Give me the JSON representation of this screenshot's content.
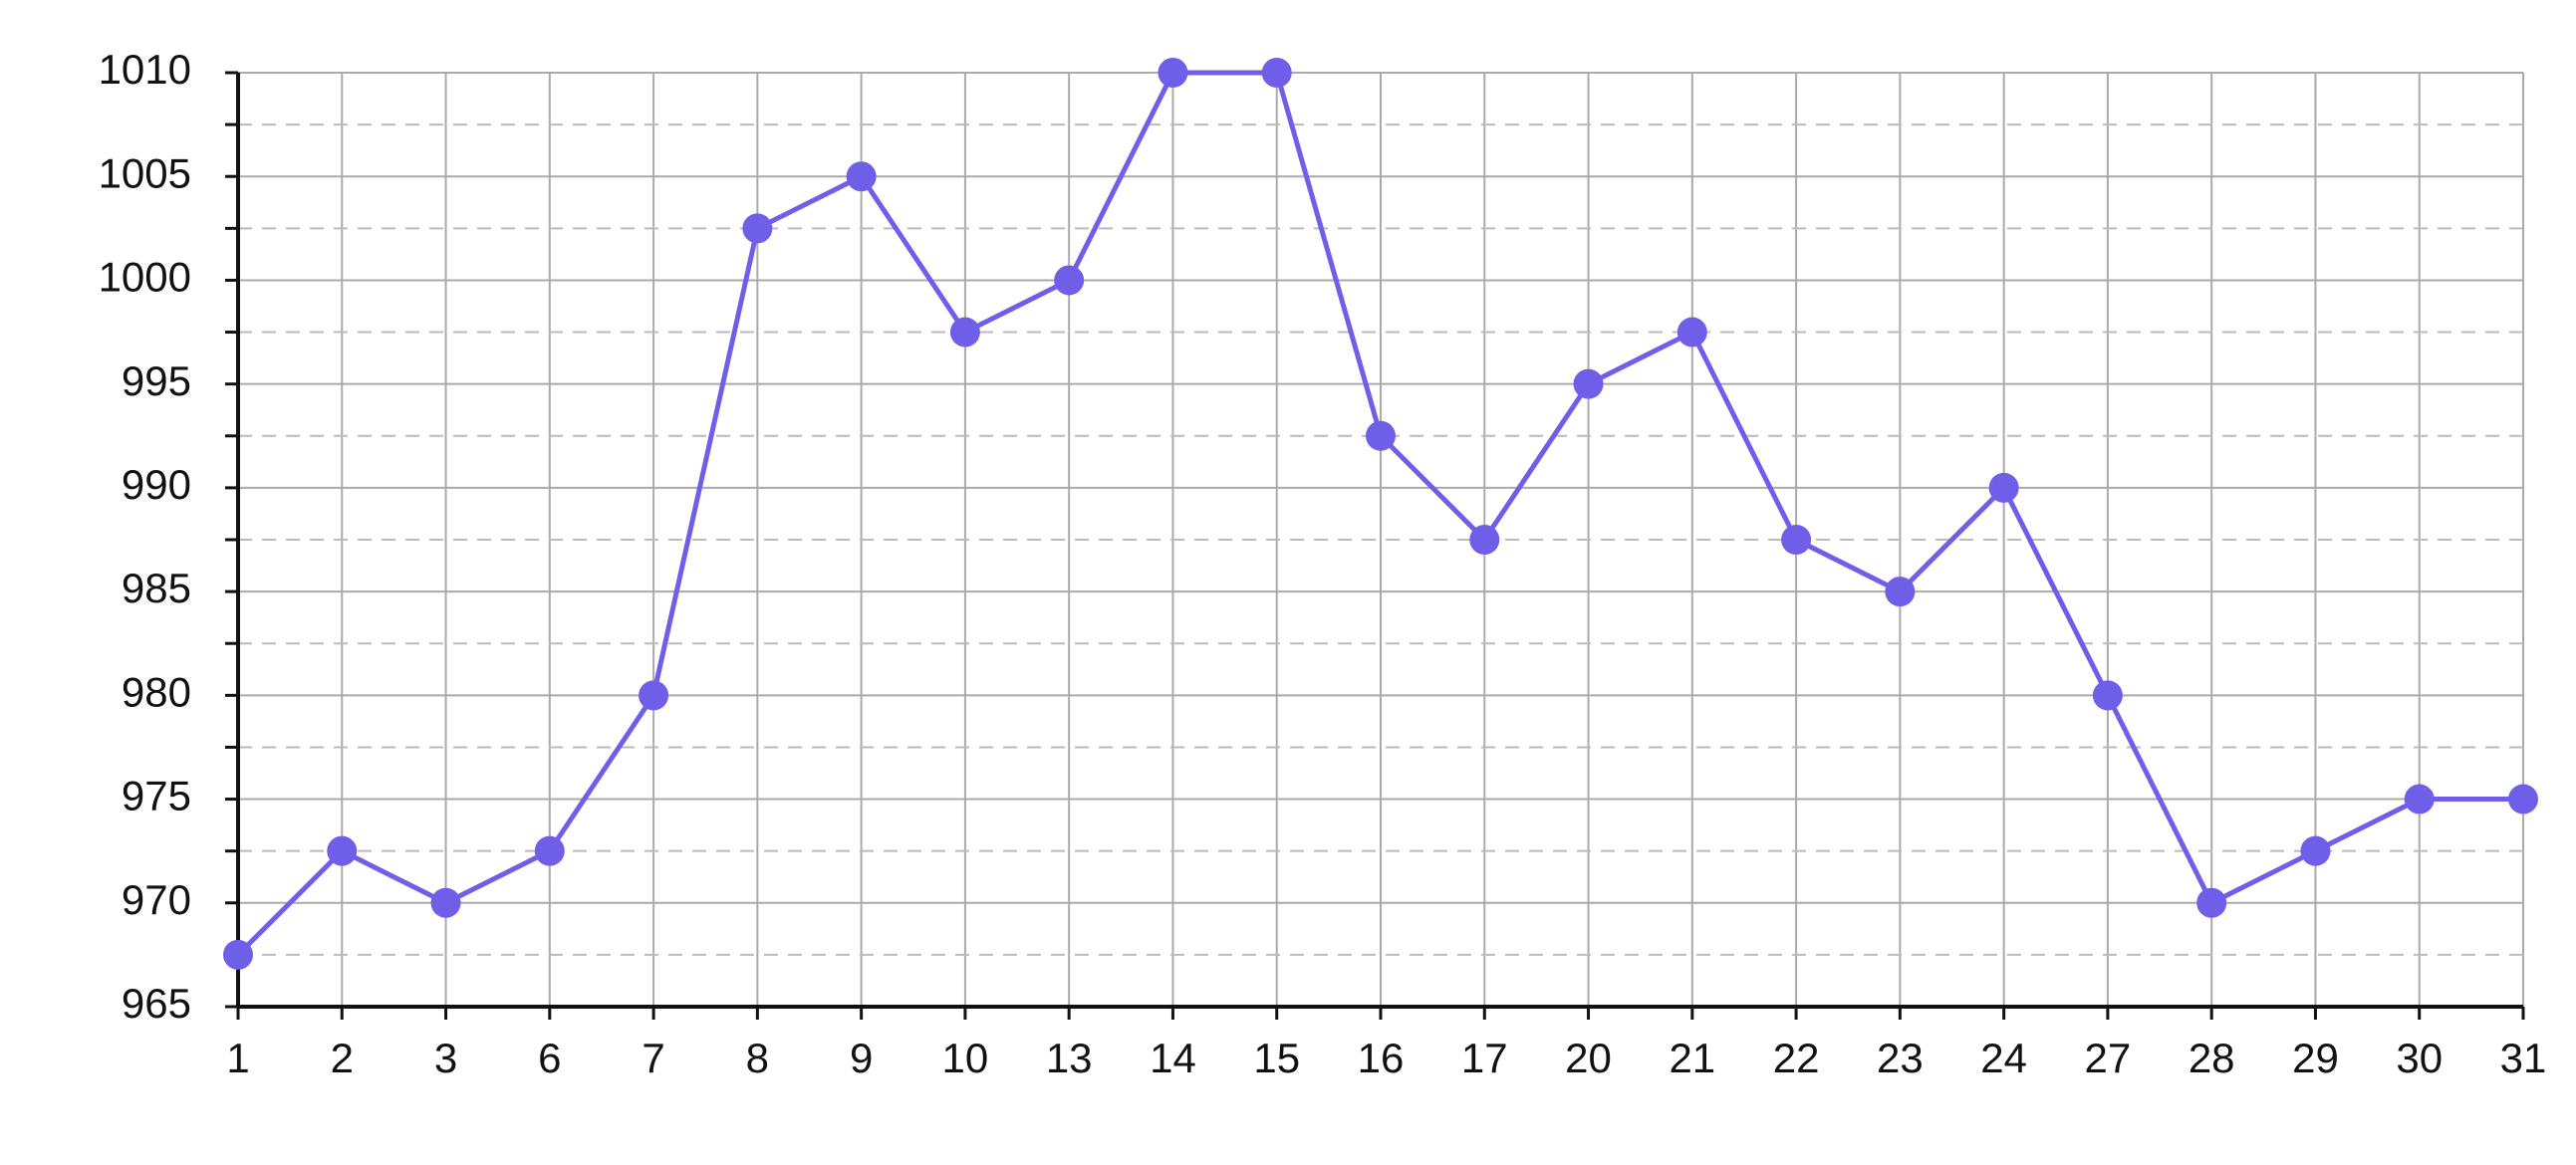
{
  "chart_data": {
    "type": "line",
    "categories": [
      "1",
      "2",
      "3",
      "6",
      "7",
      "8",
      "9",
      "10",
      "13",
      "14",
      "15",
      "16",
      "17",
      "20",
      "21",
      "22",
      "23",
      "24",
      "27",
      "28",
      "29",
      "30",
      "31"
    ],
    "series": [
      {
        "color": "#6f5fe8",
        "values": [
          967.5,
          972.5,
          970,
          972.5,
          980,
          1002.5,
          1005,
          997.5,
          1000,
          1010,
          1010,
          992.5,
          987.5,
          995,
          997.5,
          987.5,
          985,
          990,
          980,
          970,
          972.5,
          975,
          975
        ]
      }
    ],
    "ylim": [
      965,
      1010
    ],
    "yticks": [
      965,
      970,
      975,
      980,
      985,
      990,
      995,
      1000,
      1005,
      1010
    ],
    "minor_yticks": [
      967.5,
      972.5,
      977.5,
      982.5,
      987.5,
      992.5,
      997.5,
      1002.5,
      1007.5
    ],
    "grid": true
  }
}
